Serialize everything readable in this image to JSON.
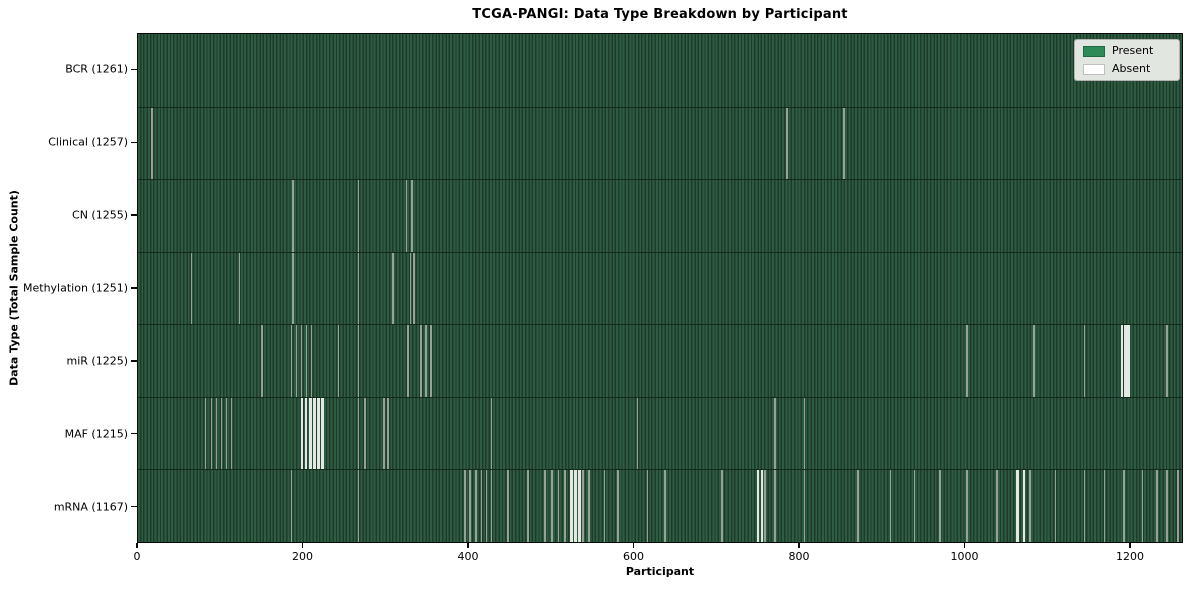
{
  "title": "TCGA-PANGI: Data Type Breakdown by Participant",
  "x_axis": {
    "label": "Participant",
    "ticks": [
      0,
      200,
      400,
      600,
      800,
      1000,
      1200
    ],
    "min": 0,
    "max": 1264
  },
  "y_axis": {
    "label": "Data Type (Total Sample Count)"
  },
  "legend": [
    {
      "label": "Present",
      "color": "#2e8b57"
    },
    {
      "label": "Absent",
      "color": "#ffffff"
    }
  ],
  "colors": {
    "present": "#2e8b57",
    "absent": "#ffffff",
    "absent_rendered": "#96a198"
  },
  "chart_data": {
    "type": "heatmap",
    "title": "TCGA-PANGI: Data Type Breakdown by Participant",
    "xlabel": "Participant",
    "ylabel": "Data Type (Total Sample Count)",
    "x_range": [
      0,
      1264
    ],
    "legend_position": "upper right",
    "rows": [
      {
        "label": "BCR (1261)",
        "data_type": "BCR",
        "sample_count": 1261,
        "absent": [],
        "absent_strong": []
      },
      {
        "label": "Clinical (1257)",
        "data_type": "Clinical",
        "sample_count": 1257,
        "absent": [
          16,
          785,
          854
        ],
        "absent_strong": []
      },
      {
        "label": "CN (1255)",
        "data_type": "CN",
        "sample_count": 1255,
        "absent": [
          187,
          266,
          324,
          331
        ],
        "absent_strong": []
      },
      {
        "label": "Methylation (1251)",
        "data_type": "Methylation",
        "sample_count": 1251,
        "absent": [
          64,
          122,
          187,
          266,
          308,
          329,
          333
        ],
        "absent_strong": []
      },
      {
        "label": "miR (1225)",
        "data_type": "miR",
        "sample_count": 1225,
        "absent": [
          149,
          185,
          191,
          197,
          203,
          209,
          242,
          266,
          326,
          342,
          348,
          354,
          1003,
          1084,
          1145,
          1245
        ],
        "absent_strong": [
          1190,
          1194,
          1198
        ]
      },
      {
        "label": "MAF (1215)",
        "data_type": "MAF",
        "sample_count": 1215,
        "absent": [
          81,
          88,
          94,
          100,
          106,
          112,
          266,
          274,
          297,
          302,
          427,
          604,
          770,
          806
        ],
        "absent_strong": [
          197,
          202,
          207,
          212,
          217,
          222
        ]
      },
      {
        "label": "mRNA (1167)",
        "data_type": "mRNA",
        "sample_count": 1167,
        "absent": [
          185,
          266,
          395,
          401,
          408,
          415,
          421,
          427,
          447,
          471,
          492,
          500,
          508,
          516,
          538,
          545,
          564,
          580,
          616,
          637,
          706,
          758,
          770,
          806,
          871,
          910,
          939,
          970,
          1003,
          1039,
          1079,
          1110,
          1145,
          1169,
          1193,
          1215,
          1233,
          1245,
          1258
        ],
        "absent_strong": [
          523,
          528,
          533,
          749,
          754,
          1063,
          1071
        ]
      }
    ]
  }
}
